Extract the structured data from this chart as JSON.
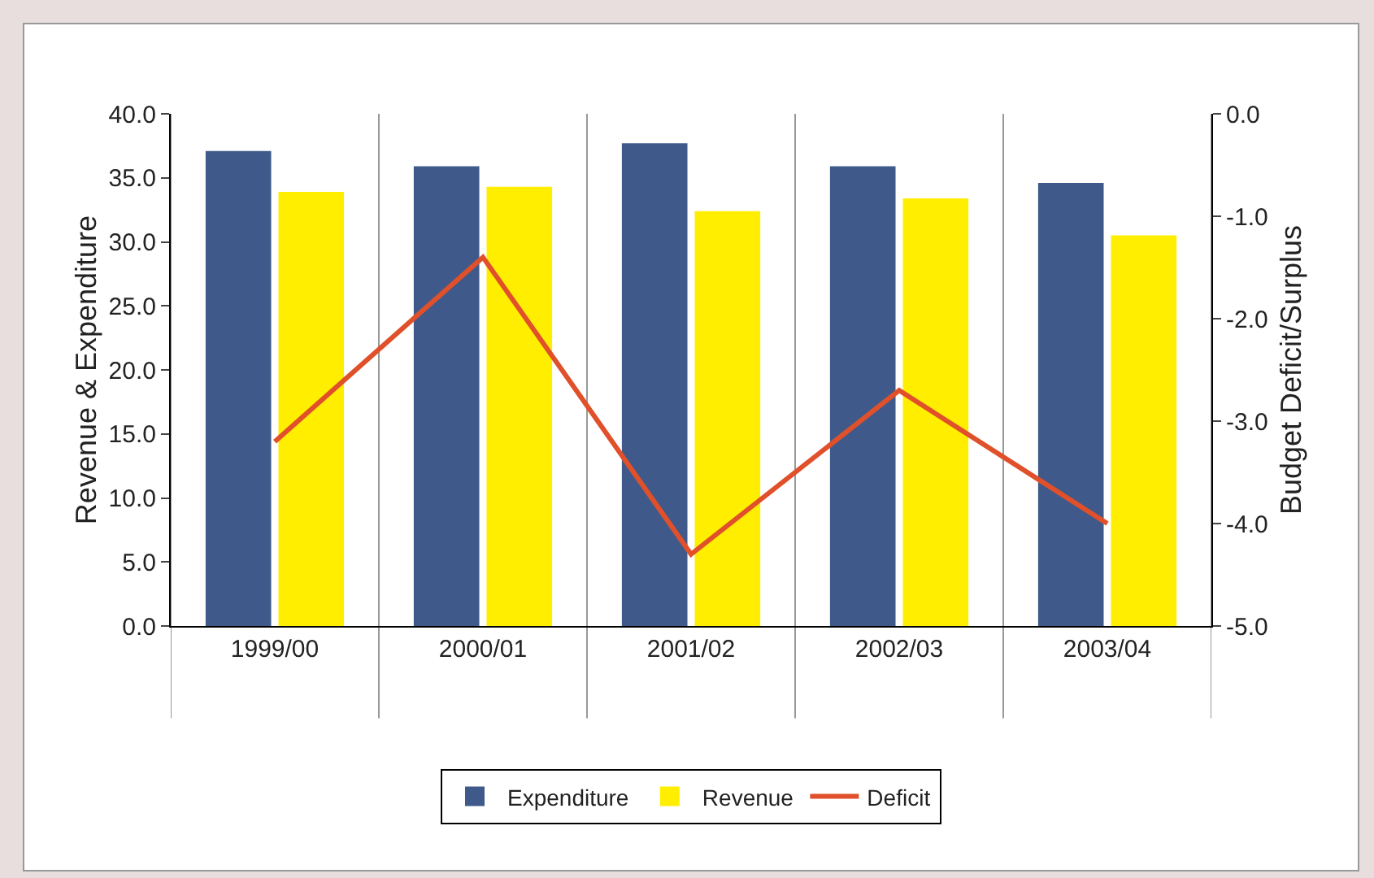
{
  "chart_data": {
    "type": "bar",
    "ylabel": "Revenue & Expenditure",
    "y2label": "Budget Deficit/Surplus",
    "categories": [
      "1999/00",
      "2000/01",
      "2001/02",
      "2002/03",
      "2003/04"
    ],
    "series": [
      {
        "name": "Expenditure",
        "color": "#3f5a8a",
        "values": [
          37.1,
          35.9,
          37.7,
          35.9,
          34.6
        ]
      },
      {
        "name": "Revenue",
        "color": "#ffee00",
        "values": [
          33.9,
          34.3,
          32.4,
          33.4,
          30.5
        ]
      },
      {
        "name": "Deficit",
        "type": "line",
        "axis": "y2",
        "color": "#e0502a",
        "values": [
          -3.2,
          -1.4,
          -4.3,
          -2.7,
          -4.0
        ],
        "marker": "none",
        "line_style": "solid"
      }
    ],
    "ylim": [
      0,
      40
    ],
    "yticks": [
      {
        "value": 0,
        "label": "0.0"
      },
      {
        "value": 5,
        "label": "5.0"
      },
      {
        "value": 10,
        "label": "10.0"
      },
      {
        "value": 15,
        "label": "15.0"
      },
      {
        "value": 20,
        "label": "20.0"
      },
      {
        "value": 25,
        "label": "25.0"
      },
      {
        "value": 30,
        "label": "30.0"
      },
      {
        "value": 35,
        "label": "35.0"
      },
      {
        "value": 40,
        "label": "40.0"
      }
    ],
    "y2lim": [
      -5,
      0
    ],
    "y2ticks": [
      {
        "value": -5,
        "label": "-5.0"
      },
      {
        "value": -4,
        "label": "-4.0"
      },
      {
        "value": -3,
        "label": "-3.0"
      },
      {
        "value": -2,
        "label": "-2.0"
      },
      {
        "value": -1,
        "label": "-1.0"
      },
      {
        "value": 0,
        "label": "0.0"
      }
    ],
    "grid": "x",
    "legend": "bottom"
  }
}
